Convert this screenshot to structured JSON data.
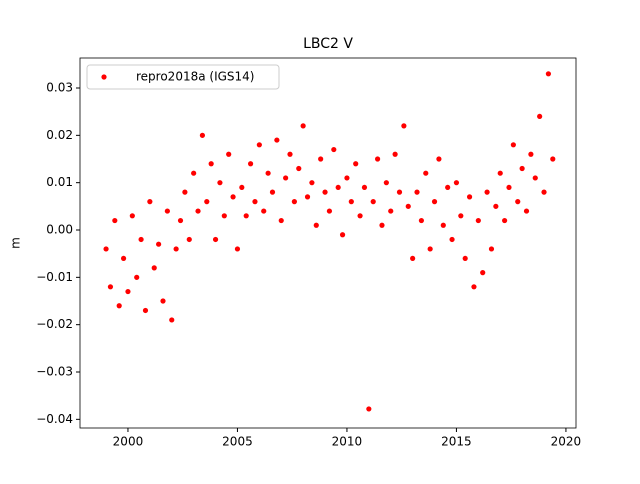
{
  "chart_data": {
    "type": "scatter",
    "title": "LBC2 V",
    "y_label": "m",
    "series": [
      {
        "name": "repro2018a (IGS14)",
        "color": "#ff0000",
        "x": [
          1999.0,
          1999.2,
          1999.4,
          1999.6,
          1999.8,
          2000.0,
          2000.2,
          2000.4,
          2000.6,
          2000.8,
          2001.0,
          2001.2,
          2001.4,
          2001.6,
          2001.8,
          2002.0,
          2002.2,
          2002.4,
          2002.6,
          2002.8,
          2003.0,
          2003.2,
          2003.4,
          2003.6,
          2003.8,
          2004.0,
          2004.2,
          2004.4,
          2004.6,
          2004.8,
          2005.0,
          2005.2,
          2005.4,
          2005.6,
          2005.8,
          2006.0,
          2006.2,
          2006.4,
          2006.6,
          2006.8,
          2007.0,
          2007.2,
          2007.4,
          2007.6,
          2007.8,
          2008.0,
          2008.2,
          2008.4,
          2008.6,
          2008.8,
          2009.0,
          2009.2,
          2009.4,
          2009.6,
          2009.8,
          2010.0,
          2010.2,
          2010.4,
          2010.6,
          2010.8,
          2011.0,
          2011.2,
          2011.4,
          2011.6,
          2011.8,
          2012.0,
          2012.2,
          2012.4,
          2012.6,
          2012.8,
          2013.0,
          2013.2,
          2013.4,
          2013.6,
          2013.8,
          2014.0,
          2014.2,
          2014.4,
          2014.6,
          2014.8,
          2015.0,
          2015.2,
          2015.4,
          2015.6,
          2015.8,
          2016.0,
          2016.2,
          2016.4,
          2016.6,
          2016.8,
          2017.0,
          2017.2,
          2017.4,
          2017.6,
          2017.8,
          2018.0,
          2018.2,
          2018.4,
          2018.6,
          2018.8,
          2019.0,
          2019.2,
          2019.4
        ],
        "values": [
          -0.004,
          -0.012,
          0.002,
          -0.016,
          -0.006,
          -0.013,
          0.003,
          -0.01,
          -0.002,
          -0.017,
          0.006,
          -0.008,
          -0.003,
          -0.015,
          0.004,
          -0.019,
          -0.004,
          0.002,
          0.008,
          -0.002,
          0.012,
          0.004,
          0.02,
          0.006,
          0.014,
          -0.002,
          0.01,
          0.003,
          0.016,
          0.007,
          -0.004,
          0.009,
          0.003,
          0.014,
          0.006,
          0.018,
          0.004,
          0.012,
          0.008,
          0.019,
          0.002,
          0.011,
          0.016,
          0.006,
          0.013,
          0.022,
          0.007,
          0.01,
          0.001,
          0.015,
          0.008,
          0.004,
          0.017,
          0.009,
          -0.001,
          0.011,
          0.006,
          0.014,
          0.003,
          0.009,
          -0.0378,
          0.006,
          0.015,
          0.001,
          0.01,
          0.004,
          0.016,
          0.008,
          0.022,
          0.005,
          -0.006,
          0.008,
          0.002,
          0.012,
          -0.004,
          0.006,
          0.015,
          0.001,
          0.009,
          -0.002,
          0.01,
          0.003,
          -0.006,
          0.007,
          -0.012,
          0.002,
          -0.009,
          0.008,
          -0.004,
          0.005,
          0.012,
          0.002,
          0.009,
          0.018,
          0.006,
          0.013,
          0.004,
          0.016,
          0.011,
          0.024,
          0.008,
          0.033,
          0.015
        ]
      }
    ],
    "xlim": [
      1997.81,
      2020.46
    ],
    "xticks": [
      2000,
      2005,
      2010,
      2015,
      2020
    ],
    "ylim": [
      -0.04183,
      0.03634
    ],
    "yticks": [
      {
        "value": -0.04,
        "label": "−0.04"
      },
      {
        "value": -0.03,
        "label": "−0.03"
      },
      {
        "value": -0.02,
        "label": "−0.02"
      },
      {
        "value": -0.01,
        "label": "−0.01"
      },
      {
        "value": 0,
        "label": "0.00"
      },
      0.01,
      0.02,
      0.03
    ],
    "legend": "upper left",
    "grid": false
  }
}
